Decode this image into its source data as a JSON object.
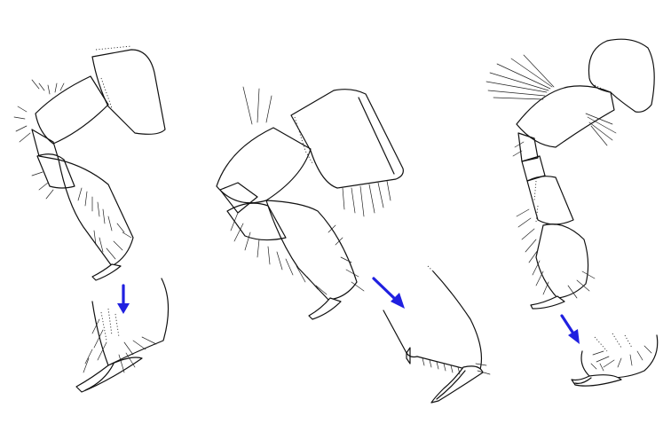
{
  "figure": {
    "panels": [
      {
        "name": "left",
        "callout_arrow": "down",
        "has_detail_inset": true
      },
      {
        "name": "middle",
        "callout_arrow": "down-right",
        "has_detail_inset": true
      },
      {
        "name": "right",
        "callout_arrow": "down-right",
        "has_detail_inset": true
      }
    ],
    "colors": {
      "line": "#111111",
      "arrow": "#2020e0",
      "background": "#ffffff"
    }
  }
}
